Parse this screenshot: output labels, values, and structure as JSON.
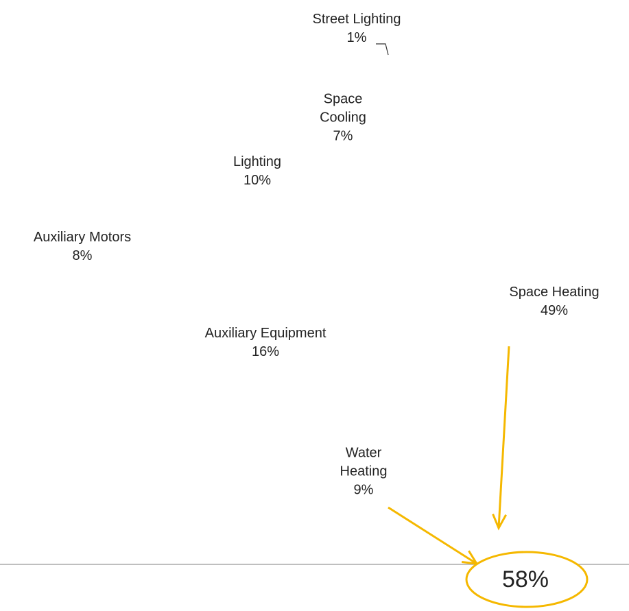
{
  "chart_data": {
    "type": "pie",
    "categories": [
      "Space Heating",
      "Water Heating",
      "Auxiliary Equipment",
      "Auxiliary Motors",
      "Lighting",
      "Space Cooling",
      "Street Lighting"
    ],
    "values": [
      49,
      9,
      16,
      8,
      10,
      7,
      1
    ],
    "value_labels": [
      "49%",
      "9%",
      "16%",
      "8%",
      "10%",
      "7%",
      "1%"
    ],
    "colors": [
      "#4572a7",
      "#aa4643",
      "#89a54e",
      "#71588f",
      "#4198af",
      "#db843d",
      "#93a9cf"
    ],
    "annotations": [
      {
        "text": "58%"
      }
    ]
  }
}
